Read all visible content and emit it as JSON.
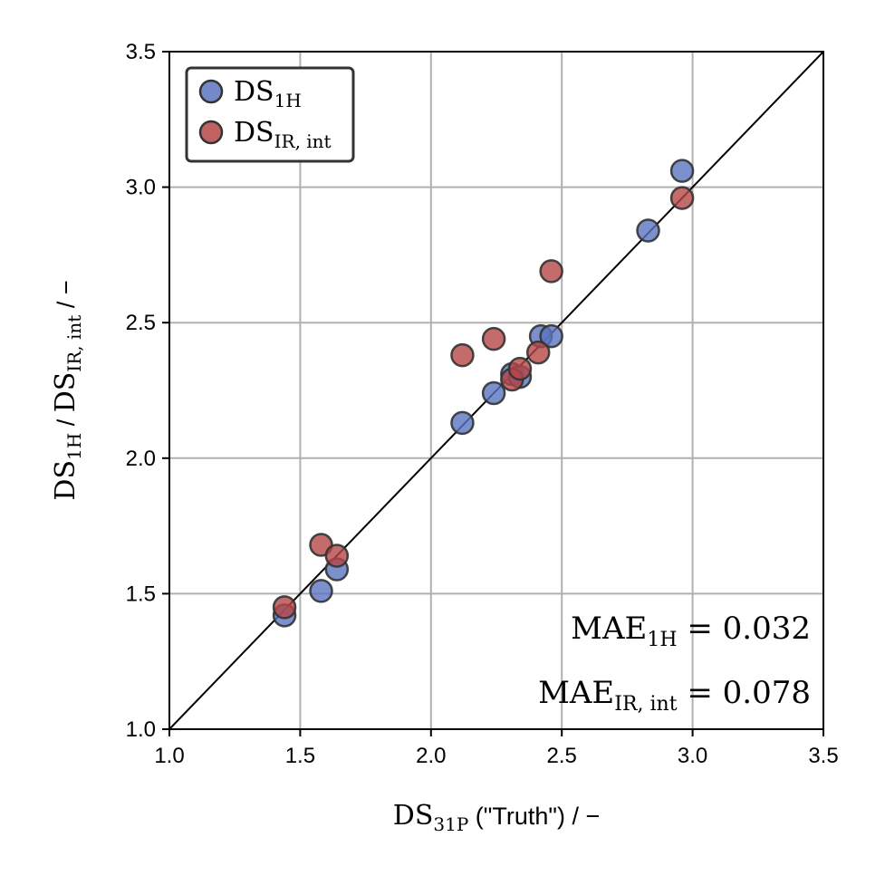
{
  "chart_data": {
    "type": "scatter",
    "xlim": [
      1.0,
      3.5
    ],
    "ylim": [
      1.0,
      3.5
    ],
    "x_ticks": [
      "1.0",
      "1.5",
      "2.0",
      "2.5",
      "3.0",
      "3.5"
    ],
    "y_ticks": [
      "1.0",
      "1.5",
      "2.0",
      "2.5",
      "3.0",
      "3.5"
    ],
    "grid": true,
    "legend_position": "top-left",
    "reference_line": "y = x",
    "xlabel": {
      "base": "DS",
      "sub": "31P",
      "rest": " (\"Truth\") / −"
    },
    "ylabel": {
      "base1": "DS",
      "sub1": "1H",
      "sep": " / ",
      "base2": "DS",
      "sub2": "IR, int",
      "rest": " / −"
    },
    "series": [
      {
        "name": {
          "base": "DS",
          "sub": "1H"
        },
        "color": "#5a74bf",
        "points": [
          [
            1.44,
            1.42
          ],
          [
            1.58,
            1.51
          ],
          [
            1.64,
            1.59
          ],
          [
            2.12,
            2.13
          ],
          [
            2.24,
            2.24
          ],
          [
            2.31,
            2.31
          ],
          [
            2.34,
            2.3
          ],
          [
            2.42,
            2.45
          ],
          [
            2.46,
            2.45
          ],
          [
            2.83,
            2.84
          ],
          [
            2.96,
            3.06
          ]
        ]
      },
      {
        "name": {
          "base": "DS",
          "sub": "IR, int"
        },
        "color": "#b54646",
        "points": [
          [
            1.44,
            1.45
          ],
          [
            1.58,
            1.68
          ],
          [
            1.64,
            1.64
          ],
          [
            2.12,
            2.38
          ],
          [
            2.24,
            2.44
          ],
          [
            2.31,
            2.29
          ],
          [
            2.34,
            2.33
          ],
          [
            2.41,
            2.39
          ],
          [
            2.46,
            2.69
          ],
          [
            2.96,
            2.96
          ]
        ]
      }
    ],
    "annotations": [
      {
        "base": "MAE",
        "sub": "1H",
        "rest": " = 0.032"
      },
      {
        "base": "MAE",
        "sub": "IR, int",
        "rest": " = 0.078"
      }
    ]
  }
}
